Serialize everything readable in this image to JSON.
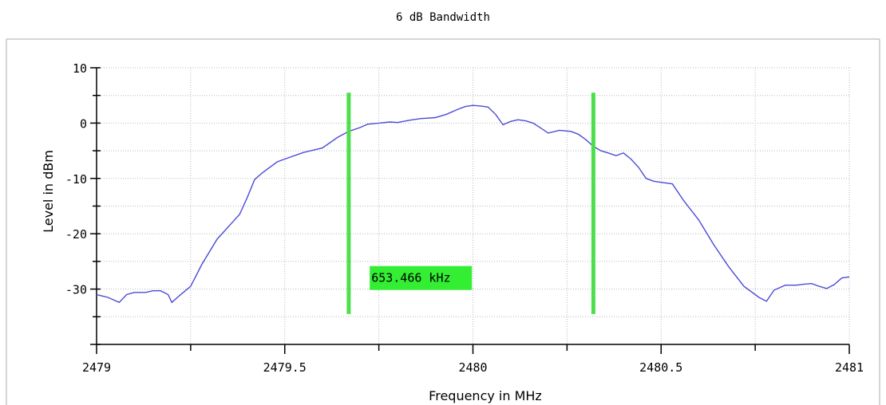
{
  "chart_data": {
    "type": "line",
    "title": "6 dB Bandwidth",
    "xlabel": "Frequency in MHz",
    "ylabel": "Level in dBm",
    "xlim": [
      2479,
      2481
    ],
    "ylim": [
      -40,
      10
    ],
    "x_ticks": [
      2479,
      2479.5,
      2480,
      2480.5,
      2481
    ],
    "x_tick_labels": [
      "2479",
      "2479.5",
      "2480",
      "2480.5",
      "2481"
    ],
    "y_ticks": [
      10,
      0,
      -10,
      -20,
      -30
    ],
    "y_tick_labels": [
      "10",
      "0",
      "-10",
      "-20",
      "-30"
    ],
    "grid": true,
    "colors": {
      "trace": "#4b4bd6",
      "marker": "#4be04b",
      "label_bg": "#33ee33"
    },
    "series": [
      {
        "x": [
          2479,
          2479.03,
          2479.06,
          2479.08,
          2479.1,
          2479.13,
          2479.15,
          2479.17,
          2479.19,
          2479.2,
          2479.22,
          2479.25,
          2479.28,
          2479.32,
          2479.36,
          2479.38,
          2479.4,
          2479.42,
          2479.44,
          2479.46,
          2479.48,
          2479.5,
          2479.55,
          2479.6,
          2479.64,
          2479.67,
          2479.7,
          2479.72,
          2479.75,
          2479.78,
          2479.8,
          2479.83,
          2479.86,
          2479.9,
          2479.93,
          2479.96,
          2479.98,
          2480,
          2480.02,
          2480.04,
          2480.06,
          2480.08,
          2480.1,
          2480.12,
          2480.14,
          2480.16,
          2480.18,
          2480.2,
          2480.23,
          2480.26,
          2480.28,
          2480.3,
          2480.32,
          2480.34,
          2480.36,
          2480.38,
          2480.4,
          2480.42,
          2480.44,
          2480.46,
          2480.48,
          2480.5,
          2480.53,
          2480.56,
          2480.6,
          2480.64,
          2480.68,
          2480.72,
          2480.76,
          2480.78,
          2480.8,
          2480.83,
          2480.86,
          2480.88,
          2480.9,
          2480.92,
          2480.94,
          2480.96,
          2480.98,
          2481
        ],
        "y": [
          -31,
          -31.5,
          -32.4,
          -31,
          -30.6,
          -30.6,
          -30.3,
          -30.3,
          -31,
          -32.4,
          -31.2,
          -29.5,
          -25.5,
          -21,
          -18,
          -16.5,
          -13.5,
          -10.2,
          -9,
          -8,
          -7,
          -6.5,
          -5.3,
          -4.5,
          -2.6,
          -1.5,
          -0.8,
          -0.2,
          0,
          0.2,
          0.1,
          0.5,
          0.8,
          1,
          1.6,
          2.5,
          3,
          3.2,
          3.1,
          2.9,
          1.6,
          -0.3,
          0.3,
          0.6,
          0.4,
          0,
          -0.9,
          -1.8,
          -1.3,
          -1.5,
          -2,
          -3,
          -4.2,
          -5,
          -5.4,
          -5.9,
          -5.4,
          -6.5,
          -8,
          -10,
          -10.5,
          -10.7,
          -11,
          -14,
          -17.5,
          -22,
          -26,
          -29.5,
          -31.5,
          -32.2,
          -30.2,
          -29.3,
          -29.3,
          -29.1,
          -29,
          -29.5,
          -29.9,
          -29.2,
          -28,
          -27.8
        ]
      }
    ],
    "markers": {
      "lower_x": 2479.67,
      "upper_x": 2480.32,
      "y_top": 5.5,
      "y_bottom": -34.5
    },
    "annotation": {
      "text": "653.466 kHz",
      "x": 2479.73,
      "y": -28
    }
  }
}
